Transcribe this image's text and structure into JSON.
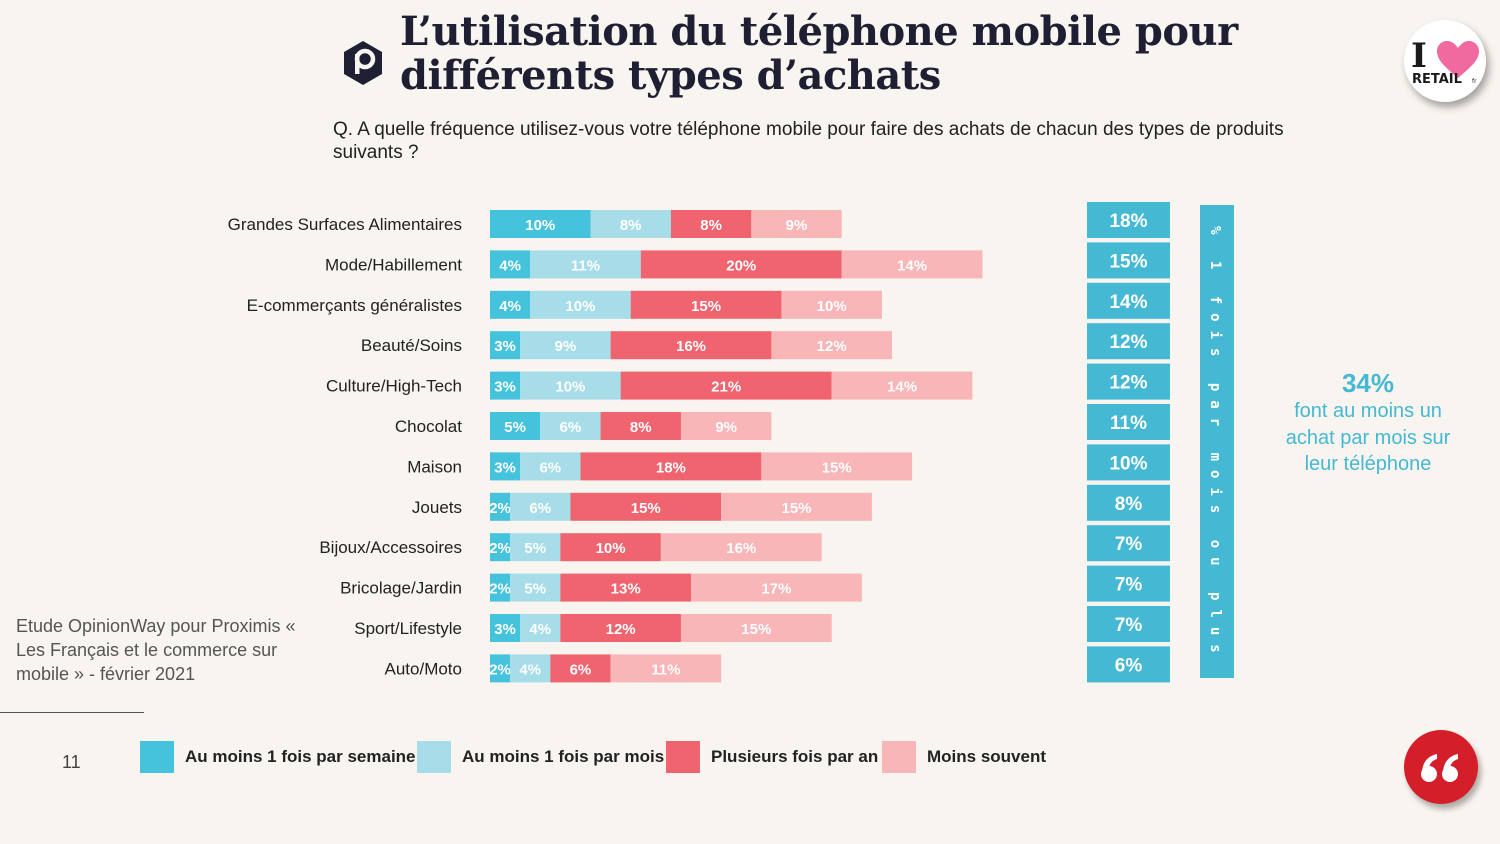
{
  "title": {
    "line1": "L’utilisation du téléphone mobile pour",
    "line2": "différents types d’achats"
  },
  "question": "Q. A quelle fréquence utilisez-vous votre téléphone mobile pour faire des achats de chacun des types de produits suivants ?",
  "brand": {
    "retail_badge_text": "I",
    "retail_badge_word": "RETAIL",
    "retail_badge_suffix": "fr"
  },
  "colors": {
    "weekly": "#45c2dc",
    "monthly": "#a7dde9",
    "yearly": "#f0646f",
    "less": "#f8b6b9",
    "total_box": "#45b8d3",
    "background": "#f8f4ef"
  },
  "chart_data": {
    "type": "bar",
    "orientation": "horizontal-stacked",
    "categories": [
      "Grandes Surfaces Alimentaires",
      "Mode/Habillement",
      "E-commerçants généralistes",
      "Beauté/Soins",
      "Culture/High-Tech",
      "Chocolat",
      "Maison",
      "Jouets",
      "Bijoux/Accessoires",
      "Bricolage/Jardin",
      "Sport/Lifestyle",
      "Auto/Moto"
    ],
    "series": [
      {
        "name": "Au moins 1 fois par semaine",
        "key": "weekly",
        "values": [
          10,
          4,
          4,
          3,
          3,
          5,
          3,
          2,
          2,
          2,
          3,
          2
        ]
      },
      {
        "name": "Au moins 1 fois par mois",
        "key": "monthly",
        "values": [
          8,
          11,
          10,
          9,
          10,
          6,
          6,
          6,
          5,
          5,
          4,
          4
        ]
      },
      {
        "name": "Plusieurs fois par an",
        "key": "yearly",
        "values": [
          8,
          20,
          15,
          16,
          21,
          8,
          18,
          15,
          10,
          13,
          12,
          6
        ]
      },
      {
        "name": "Moins souvent",
        "key": "less",
        "values": [
          9,
          14,
          10,
          12,
          14,
          9,
          15,
          15,
          16,
          17,
          15,
          11
        ]
      }
    ],
    "totals": {
      "label": "% 1 fois par mois ou plus",
      "values": [
        "18%",
        "15%",
        "14%",
        "12%",
        "12%",
        "11%",
        "10%",
        "8%",
        "7%",
        "7%",
        "7%",
        "6%"
      ]
    },
    "value_suffix": "%",
    "xlim": [
      0,
      50
    ],
    "legend_position": "bottom",
    "grid": false
  },
  "highlight": {
    "value": "34%",
    "text": "font au moins un achat par mois sur leur téléphone"
  },
  "source": "Etude OpinionWay pour Proximis « Les Français et le commerce sur mobile » - février 2021",
  "page_number": "11"
}
